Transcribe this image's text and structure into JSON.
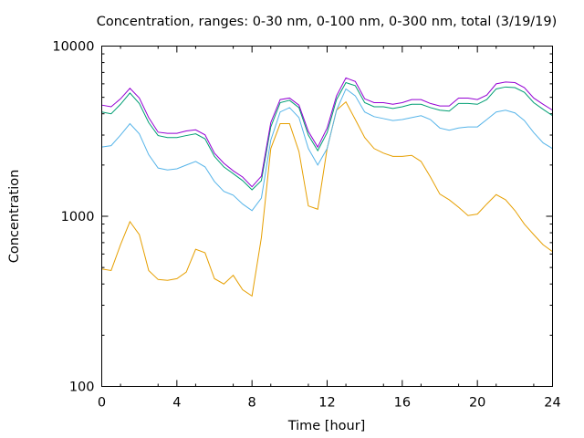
{
  "chart_data": {
    "type": "line",
    "title": "Concentration, ranges: 0-30 nm, 0-100 nm, 0-300 nm, total (3/19/19)",
    "xlabel": "Time [hour]",
    "ylabel": "Concentration",
    "xlim": [
      0,
      24
    ],
    "ylim": [
      100,
      10000
    ],
    "y_scale": "log",
    "grid": false,
    "legend": "none",
    "x_ticks": [
      0,
      4,
      8,
      12,
      16,
      20,
      24
    ],
    "x_tick_labels": [
      "0",
      "4",
      "8",
      "12",
      "16",
      "20",
      "24"
    ],
    "y_ticks": [
      100,
      1000,
      10000
    ],
    "y_tick_labels": [
      "100",
      "1000",
      "10000"
    ],
    "x": [
      0,
      0.5,
      1,
      1.5,
      2,
      2.5,
      3,
      3.5,
      4,
      4.5,
      5,
      5.5,
      6,
      6.5,
      7,
      7.5,
      8,
      8.5,
      9,
      9.5,
      10,
      10.5,
      11,
      11.5,
      12,
      12.5,
      13,
      13.5,
      14,
      14.5,
      15,
      15.5,
      16,
      16.5,
      17,
      17.5,
      18,
      18.5,
      19,
      19.5,
      20,
      20.5,
      21,
      21.5,
      22,
      22.5,
      23,
      23.5,
      24
    ],
    "series": [
      {
        "color": "#e69f00",
        "values": [
          490,
          480,
          680,
          930,
          780,
          480,
          425,
          420,
          430,
          470,
          640,
          610,
          430,
          400,
          450,
          370,
          340,
          750,
          2500,
          3500,
          3500,
          2400,
          1150,
          1100,
          2500,
          4200,
          4700,
          3700,
          2900,
          2500,
          2350,
          2250,
          2250,
          2280,
          2100,
          1700,
          1350,
          1250,
          1130,
          1010,
          1030,
          1180,
          1340,
          1250,
          1080,
          900,
          780,
          680,
          620
        ]
      },
      {
        "color": "#56b4e9",
        "values": [
          2550,
          2600,
          3000,
          3500,
          3050,
          2300,
          1920,
          1870,
          1900,
          2000,
          2100,
          1950,
          1600,
          1400,
          1330,
          1180,
          1080,
          1280,
          2800,
          4100,
          4350,
          3800,
          2500,
          2000,
          2500,
          4200,
          5600,
          5100,
          4100,
          3850,
          3750,
          3650,
          3700,
          3800,
          3900,
          3700,
          3300,
          3200,
          3300,
          3350,
          3350,
          3700,
          4100,
          4200,
          4050,
          3650,
          3100,
          2700,
          2500
        ]
      },
      {
        "color": "#009e73",
        "values": [
          4100,
          4000,
          4550,
          5300,
          4600,
          3550,
          2980,
          2900,
          2900,
          2980,
          3050,
          2850,
          2250,
          1950,
          1780,
          1620,
          1430,
          1620,
          3350,
          4650,
          4800,
          4350,
          3000,
          2430,
          3100,
          4850,
          6100,
          5850,
          4650,
          4400,
          4400,
          4300,
          4400,
          4550,
          4550,
          4350,
          4200,
          4150,
          4600,
          4600,
          4550,
          4850,
          5600,
          5750,
          5700,
          5350,
          4650,
          4250,
          3900
        ]
      },
      {
        "color": "#9400d3",
        "values": [
          4500,
          4400,
          4900,
          5650,
          4950,
          3800,
          3120,
          3070,
          3070,
          3170,
          3220,
          3010,
          2350,
          2050,
          1850,
          1700,
          1490,
          1720,
          3550,
          4850,
          4950,
          4500,
          3150,
          2550,
          3300,
          5100,
          6500,
          6200,
          4900,
          4650,
          4650,
          4550,
          4650,
          4850,
          4850,
          4600,
          4450,
          4450,
          4950,
          4950,
          4850,
          5150,
          6000,
          6150,
          6100,
          5700,
          4950,
          4550,
          4200
        ]
      }
    ]
  }
}
